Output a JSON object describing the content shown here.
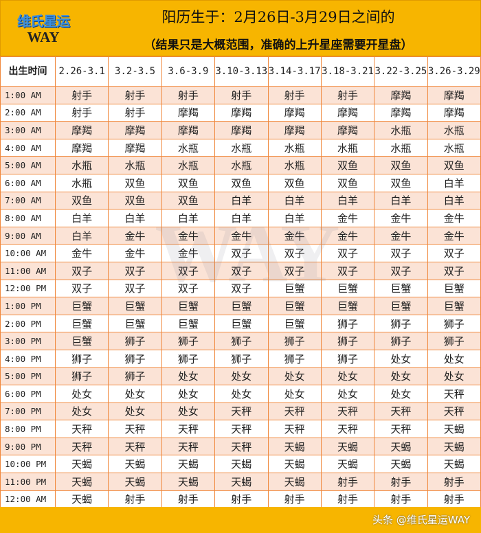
{
  "header": {
    "logo_cn": "维氏星运",
    "logo_en": "WAY",
    "title": "阳历生于：2月26日-3月29日之间的",
    "subtitle": "（结果只是大概范围，准确的上升星座需要开星盘）"
  },
  "table": {
    "columns": [
      "出生时间",
      "2.26-3.1",
      "3.2-3.5",
      "3.6-3.9",
      "3.10-3.13",
      "3.14-3.17",
      "3.18-3.21",
      "3.22-3.25",
      "3.26-3.29"
    ],
    "rows": [
      [
        "1:00 AM",
        "射手",
        "射手",
        "射手",
        "射手",
        "射手",
        "射手",
        "摩羯",
        "摩羯"
      ],
      [
        "2:00 AM",
        "射手",
        "射手",
        "摩羯",
        "摩羯",
        "摩羯",
        "摩羯",
        "摩羯",
        "摩羯"
      ],
      [
        "3:00 AM",
        "摩羯",
        "摩羯",
        "摩羯",
        "摩羯",
        "摩羯",
        "摩羯",
        "水瓶",
        "水瓶"
      ],
      [
        "4:00 AM",
        "摩羯",
        "摩羯",
        "水瓶",
        "水瓶",
        "水瓶",
        "水瓶",
        "水瓶",
        "水瓶"
      ],
      [
        "5:00 AM",
        "水瓶",
        "水瓶",
        "水瓶",
        "水瓶",
        "水瓶",
        "双鱼",
        "双鱼",
        "双鱼"
      ],
      [
        "6:00 AM",
        "水瓶",
        "双鱼",
        "双鱼",
        "双鱼",
        "双鱼",
        "双鱼",
        "双鱼",
        "白羊"
      ],
      [
        "7:00 AM",
        "双鱼",
        "双鱼",
        "双鱼",
        "白羊",
        "白羊",
        "白羊",
        "白羊",
        "白羊"
      ],
      [
        "8:00 AM",
        "白羊",
        "白羊",
        "白羊",
        "白羊",
        "白羊",
        "金牛",
        "金牛",
        "金牛"
      ],
      [
        "9:00 AM",
        "白羊",
        "金牛",
        "金牛",
        "金牛",
        "金牛",
        "金牛",
        "金牛",
        "金牛"
      ],
      [
        "10:00 AM",
        "金牛",
        "金牛",
        "金牛",
        "双子",
        "双子",
        "双子",
        "双子",
        "双子"
      ],
      [
        "11:00 AM",
        "双子",
        "双子",
        "双子",
        "双子",
        "双子",
        "双子",
        "双子",
        "双子"
      ],
      [
        "12:00 PM",
        "双子",
        "双子",
        "双子",
        "双子",
        "巨蟹",
        "巨蟹",
        "巨蟹",
        "巨蟹"
      ],
      [
        "1:00 PM",
        "巨蟹",
        "巨蟹",
        "巨蟹",
        "巨蟹",
        "巨蟹",
        "巨蟹",
        "巨蟹",
        "巨蟹"
      ],
      [
        "2:00 PM",
        "巨蟹",
        "巨蟹",
        "巨蟹",
        "巨蟹",
        "巨蟹",
        "狮子",
        "狮子",
        "狮子"
      ],
      [
        "3:00 PM",
        "巨蟹",
        "狮子",
        "狮子",
        "狮子",
        "狮子",
        "狮子",
        "狮子",
        "狮子"
      ],
      [
        "4:00 PM",
        "狮子",
        "狮子",
        "狮子",
        "狮子",
        "狮子",
        "狮子",
        "处女",
        "处女"
      ],
      [
        "5:00 PM",
        "狮子",
        "狮子",
        "处女",
        "处女",
        "处女",
        "处女",
        "处女",
        "处女"
      ],
      [
        "6:00 PM",
        "处女",
        "处女",
        "处女",
        "处女",
        "处女",
        "处女",
        "处女",
        "天秤"
      ],
      [
        "7:00 PM",
        "处女",
        "处女",
        "处女",
        "天秤",
        "天秤",
        "天秤",
        "天秤",
        "天秤"
      ],
      [
        "8:00 PM",
        "天秤",
        "天秤",
        "天秤",
        "天秤",
        "天秤",
        "天秤",
        "天秤",
        "天蝎"
      ],
      [
        "9:00 PM",
        "天秤",
        "天秤",
        "天秤",
        "天秤",
        "天蝎",
        "天蝎",
        "天蝎",
        "天蝎"
      ],
      [
        "10:00 PM",
        "天蝎",
        "天蝎",
        "天蝎",
        "天蝎",
        "天蝎",
        "天蝎",
        "天蝎",
        "天蝎"
      ],
      [
        "11:00 PM",
        "天蝎",
        "天蝎",
        "天蝎",
        "天蝎",
        "天蝎",
        "射手",
        "射手",
        "射手"
      ],
      [
        "12:00 AM",
        "天蝎",
        "射手",
        "射手",
        "射手",
        "射手",
        "射手",
        "射手",
        "射手"
      ]
    ]
  },
  "footer": {
    "watermark": "头条 @维氏星运WAY"
  },
  "colors": {
    "accent": "#f7b500",
    "row_alt": "#fbe3d6",
    "border": "#f0883c"
  }
}
